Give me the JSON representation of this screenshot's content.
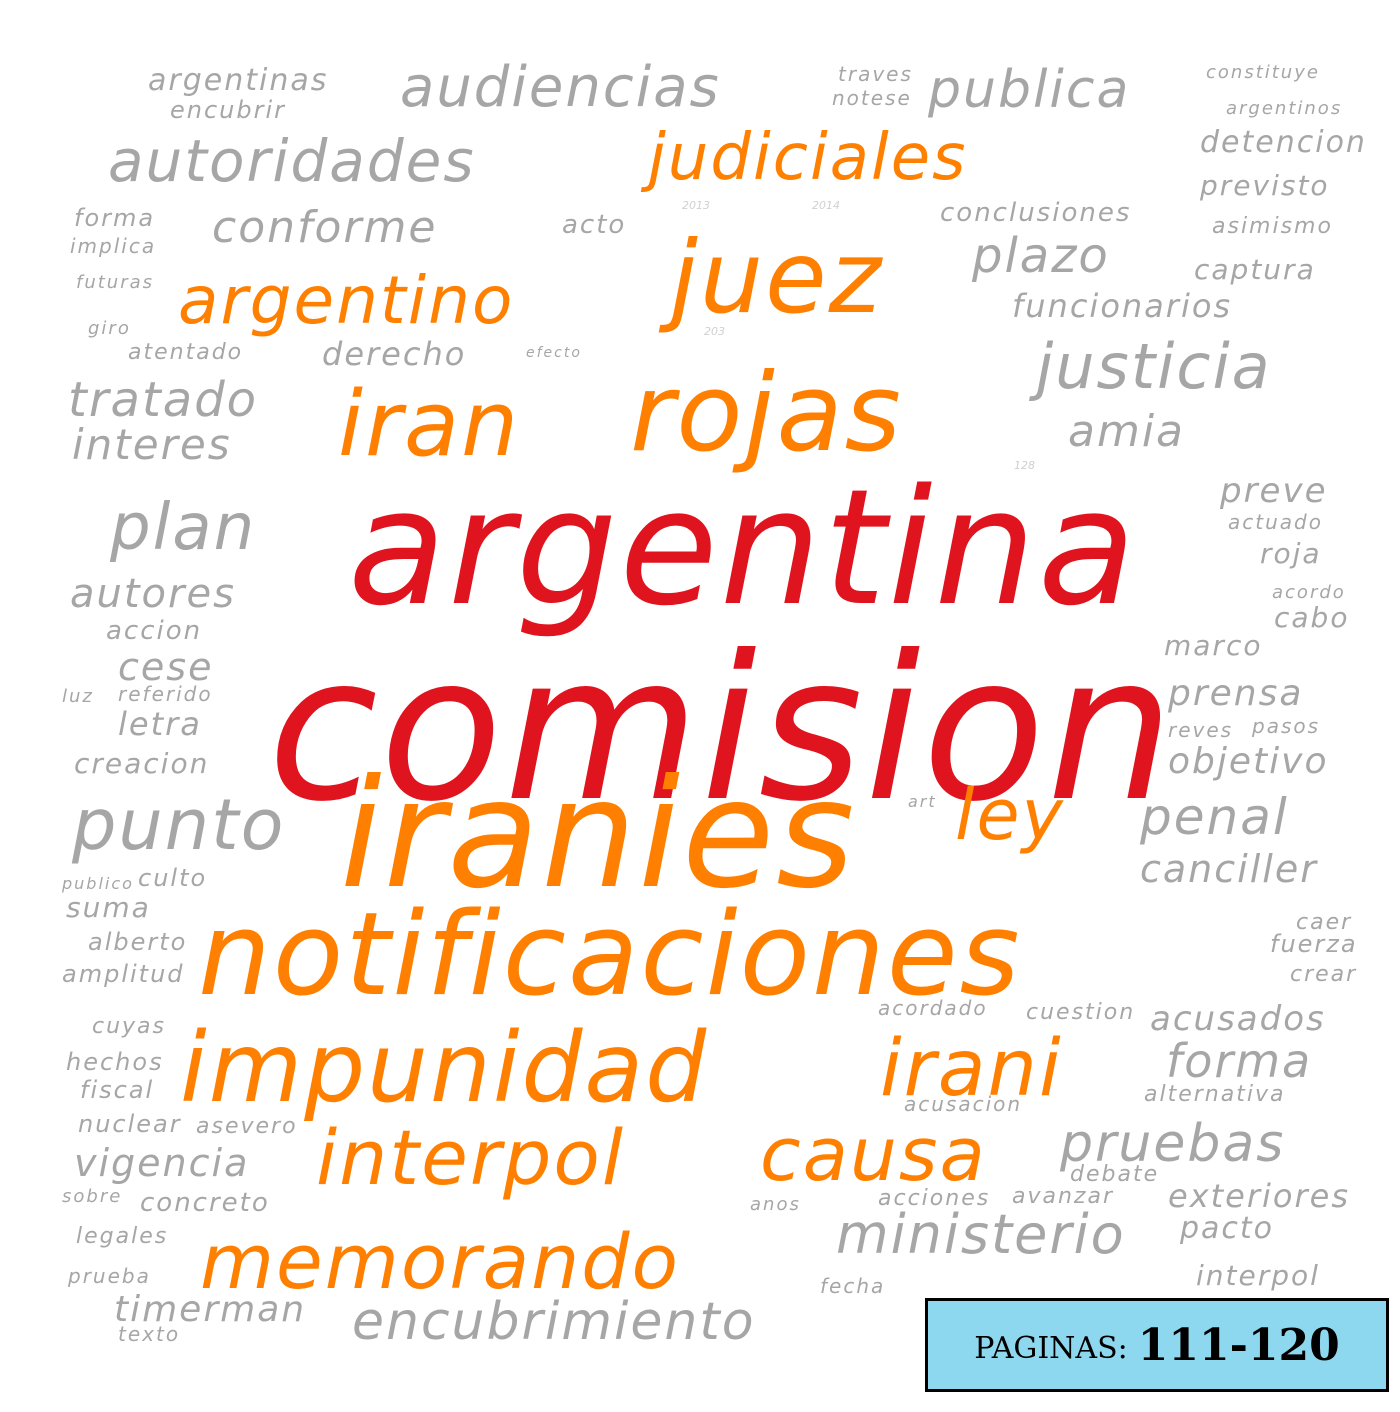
{
  "word_cloud": {
    "words": [
      {
        "text": "comision",
        "color": "red"
      },
      {
        "text": "argentina",
        "color": "red"
      },
      {
        "text": "iranies",
        "color": "orange"
      },
      {
        "text": "notificaciones",
        "color": "orange"
      },
      {
        "text": "impunidad",
        "color": "orange"
      },
      {
        "text": "irani",
        "color": "orange"
      },
      {
        "text": "rojas",
        "color": "orange"
      },
      {
        "text": "iran",
        "color": "orange"
      },
      {
        "text": "juez",
        "color": "orange"
      },
      {
        "text": "argentino",
        "color": "orange"
      },
      {
        "text": "judiciales",
        "color": "orange"
      },
      {
        "text": "ley",
        "color": "orange"
      },
      {
        "text": "interpol",
        "color": "orange"
      },
      {
        "text": "causa",
        "color": "orange"
      },
      {
        "text": "memorando",
        "color": "orange"
      },
      {
        "text": "audiencias",
        "color": "gray"
      },
      {
        "text": "publica",
        "color": "gray"
      },
      {
        "text": "argentinas",
        "color": "gray"
      },
      {
        "text": "encubrir",
        "color": "gray"
      },
      {
        "text": "autoridades",
        "color": "gray"
      },
      {
        "text": "conforme",
        "color": "gray"
      },
      {
        "text": "conclusiones",
        "color": "gray"
      },
      {
        "text": "plazo",
        "color": "gray"
      },
      {
        "text": "funcionarios",
        "color": "gray"
      },
      {
        "text": "justicia",
        "color": "gray"
      },
      {
        "text": "amia",
        "color": "gray"
      },
      {
        "text": "tratado",
        "color": "gray"
      },
      {
        "text": "interes",
        "color": "gray"
      },
      {
        "text": "derecho",
        "color": "gray"
      },
      {
        "text": "atentado",
        "color": "gray"
      },
      {
        "text": "plan",
        "color": "gray"
      },
      {
        "text": "autores",
        "color": "gray"
      },
      {
        "text": "accion",
        "color": "gray"
      },
      {
        "text": "cese",
        "color": "gray"
      },
      {
        "text": "letra",
        "color": "gray"
      },
      {
        "text": "creacion",
        "color": "gray"
      },
      {
        "text": "punto",
        "color": "gray"
      },
      {
        "text": "culto",
        "color": "gray"
      },
      {
        "text": "suma",
        "color": "gray"
      },
      {
        "text": "penal",
        "color": "gray"
      },
      {
        "text": "canciller",
        "color": "gray"
      },
      {
        "text": "prensa",
        "color": "gray"
      },
      {
        "text": "objetivo",
        "color": "gray"
      },
      {
        "text": "preve",
        "color": "gray"
      },
      {
        "text": "roja",
        "color": "gray"
      },
      {
        "text": "cabo",
        "color": "gray"
      },
      {
        "text": "marco",
        "color": "gray"
      },
      {
        "text": "detencion",
        "color": "gray"
      },
      {
        "text": "previsto",
        "color": "gray"
      },
      {
        "text": "captura",
        "color": "gray"
      },
      {
        "text": "acusados",
        "color": "gray"
      },
      {
        "text": "forma",
        "color": "gray"
      },
      {
        "text": "acusacion",
        "color": "gray"
      },
      {
        "text": "pruebas",
        "color": "gray"
      },
      {
        "text": "exteriores",
        "color": "gray"
      },
      {
        "text": "ministerio",
        "color": "gray"
      },
      {
        "text": "pacto",
        "color": "gray"
      },
      {
        "text": "interpol",
        "color": "gray"
      },
      {
        "text": "encubrimiento",
        "color": "gray"
      },
      {
        "text": "timerman",
        "color": "gray"
      },
      {
        "text": "texto",
        "color": "gray"
      },
      {
        "text": "vigencia",
        "color": "gray"
      },
      {
        "text": "concreto",
        "color": "gray"
      },
      {
        "text": "nuclear",
        "color": "gray"
      },
      {
        "text": "asevero",
        "color": "gray"
      },
      {
        "text": "fiscal",
        "color": "gray"
      },
      {
        "text": "hechos",
        "color": "gray"
      },
      {
        "text": "cuyas",
        "color": "gray"
      },
      {
        "text": "amplitud",
        "color": "gray"
      },
      {
        "text": "alberto",
        "color": "gray"
      },
      {
        "text": "legales",
        "color": "gray"
      },
      {
        "text": "prueba",
        "color": "gray"
      },
      {
        "text": "sobre",
        "color": "gray"
      },
      {
        "text": "acciones",
        "color": "gray"
      },
      {
        "text": "avanzar",
        "color": "gray"
      },
      {
        "text": "debate",
        "color": "gray"
      },
      {
        "text": "cuestion",
        "color": "gray"
      },
      {
        "text": "acordado",
        "color": "gray"
      },
      {
        "text": "alternativa",
        "color": "gray"
      },
      {
        "text": "fuerza",
        "color": "gray"
      },
      {
        "text": "caer",
        "color": "gray"
      },
      {
        "text": "crear",
        "color": "gray"
      },
      {
        "text": "fecha",
        "color": "gray"
      },
      {
        "text": "anos",
        "color": "gray"
      },
      {
        "text": "acto",
        "color": "gray"
      },
      {
        "text": "forma",
        "color": "gray"
      },
      {
        "text": "implica",
        "color": "gray"
      },
      {
        "text": "futuras",
        "color": "gray"
      },
      {
        "text": "giro",
        "color": "gray"
      },
      {
        "text": "asimismo",
        "color": "gray"
      },
      {
        "text": "constituye",
        "color": "gray"
      },
      {
        "text": "argentinos",
        "color": "gray"
      },
      {
        "text": "traves",
        "color": "gray"
      },
      {
        "text": "notese",
        "color": "gray"
      },
      {
        "text": "actuado",
        "color": "gray"
      },
      {
        "text": "acordo",
        "color": "gray"
      },
      {
        "text": "reves",
        "color": "gray"
      },
      {
        "text": "pasos",
        "color": "gray"
      },
      {
        "text": "efecto",
        "color": "gray"
      },
      {
        "text": "referido",
        "color": "gray"
      },
      {
        "text": "luz",
        "color": "gray"
      },
      {
        "text": "publico",
        "color": "gray"
      },
      {
        "text": "2013",
        "color": "gray"
      },
      {
        "text": "2014",
        "color": "gray"
      },
      {
        "text": "128",
        "color": "gray"
      },
      {
        "text": "203",
        "color": "gray"
      },
      {
        "text": "art",
        "color": "gray"
      }
    ]
  },
  "badge": {
    "label": "PAGINAS:",
    "range": "111-120"
  }
}
